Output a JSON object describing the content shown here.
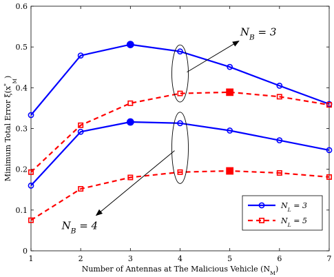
{
  "chart_data": {
    "type": "line",
    "title": "",
    "xlabel": "Number of Antennas at The Malicious Vehicle (N_M)",
    "ylabel": "Minimum Total Error ξ(x*_M)",
    "xlim": [
      1,
      7
    ],
    "ylim": [
      0,
      0.6
    ],
    "x": [
      1,
      2,
      3,
      4,
      5,
      6,
      7
    ],
    "xticks": [
      "1",
      "2",
      "3",
      "4",
      "5",
      "6",
      "7"
    ],
    "yticks": [
      "0",
      "0.1",
      "0.2",
      "0.3",
      "0.4",
      "0.5",
      "0.6"
    ],
    "grid": false,
    "legend_position": "bottom-right",
    "legend": [
      {
        "label": "N_L = 3",
        "color": "#0000ff",
        "marker": "circle",
        "dash": "solid"
      },
      {
        "label": "N_L = 5",
        "color": "#ff0000",
        "marker": "square",
        "dash": "dashed"
      }
    ],
    "series": [
      {
        "group": "N_B = 3",
        "legend": "N_L = 3",
        "color": "#0000ff",
        "marker": "circle",
        "dash": "solid",
        "values": [
          0.333,
          0.479,
          0.506,
          0.489,
          0.451,
          0.405,
          0.36
        ],
        "highlight_index": 2
      },
      {
        "group": "N_B = 3",
        "legend": "N_L = 5",
        "color": "#ff0000",
        "marker": "square",
        "dash": "dashed",
        "values": [
          0.193,
          0.308,
          0.362,
          0.386,
          0.389,
          0.378,
          0.358
        ],
        "highlight_index": 4
      },
      {
        "group": "N_B = 4",
        "legend": "N_L = 3",
        "color": "#0000ff",
        "marker": "circle",
        "dash": "solid",
        "values": [
          0.16,
          0.292,
          0.316,
          0.313,
          0.295,
          0.271,
          0.247
        ],
        "highlight_index": 2
      },
      {
        "group": "N_B = 4",
        "legend": "N_L = 5",
        "color": "#ff0000",
        "marker": "square",
        "dash": "dashed",
        "values": [
          0.075,
          0.152,
          0.18,
          0.193,
          0.196,
          0.191,
          0.181
        ],
        "highlight_index": 4
      }
    ],
    "annotations": [
      {
        "label": "N_B = 3",
        "at_x": 4,
        "ellipse_y": [
          0.365,
          0.505
        ],
        "text_x": 5.35,
        "text_y": 0.535
      },
      {
        "label": "N_B = 4",
        "at_x": 4,
        "ellipse_y": [
          0.165,
          0.34
        ],
        "text_x": 2.2,
        "text_y": 0.07
      }
    ]
  }
}
